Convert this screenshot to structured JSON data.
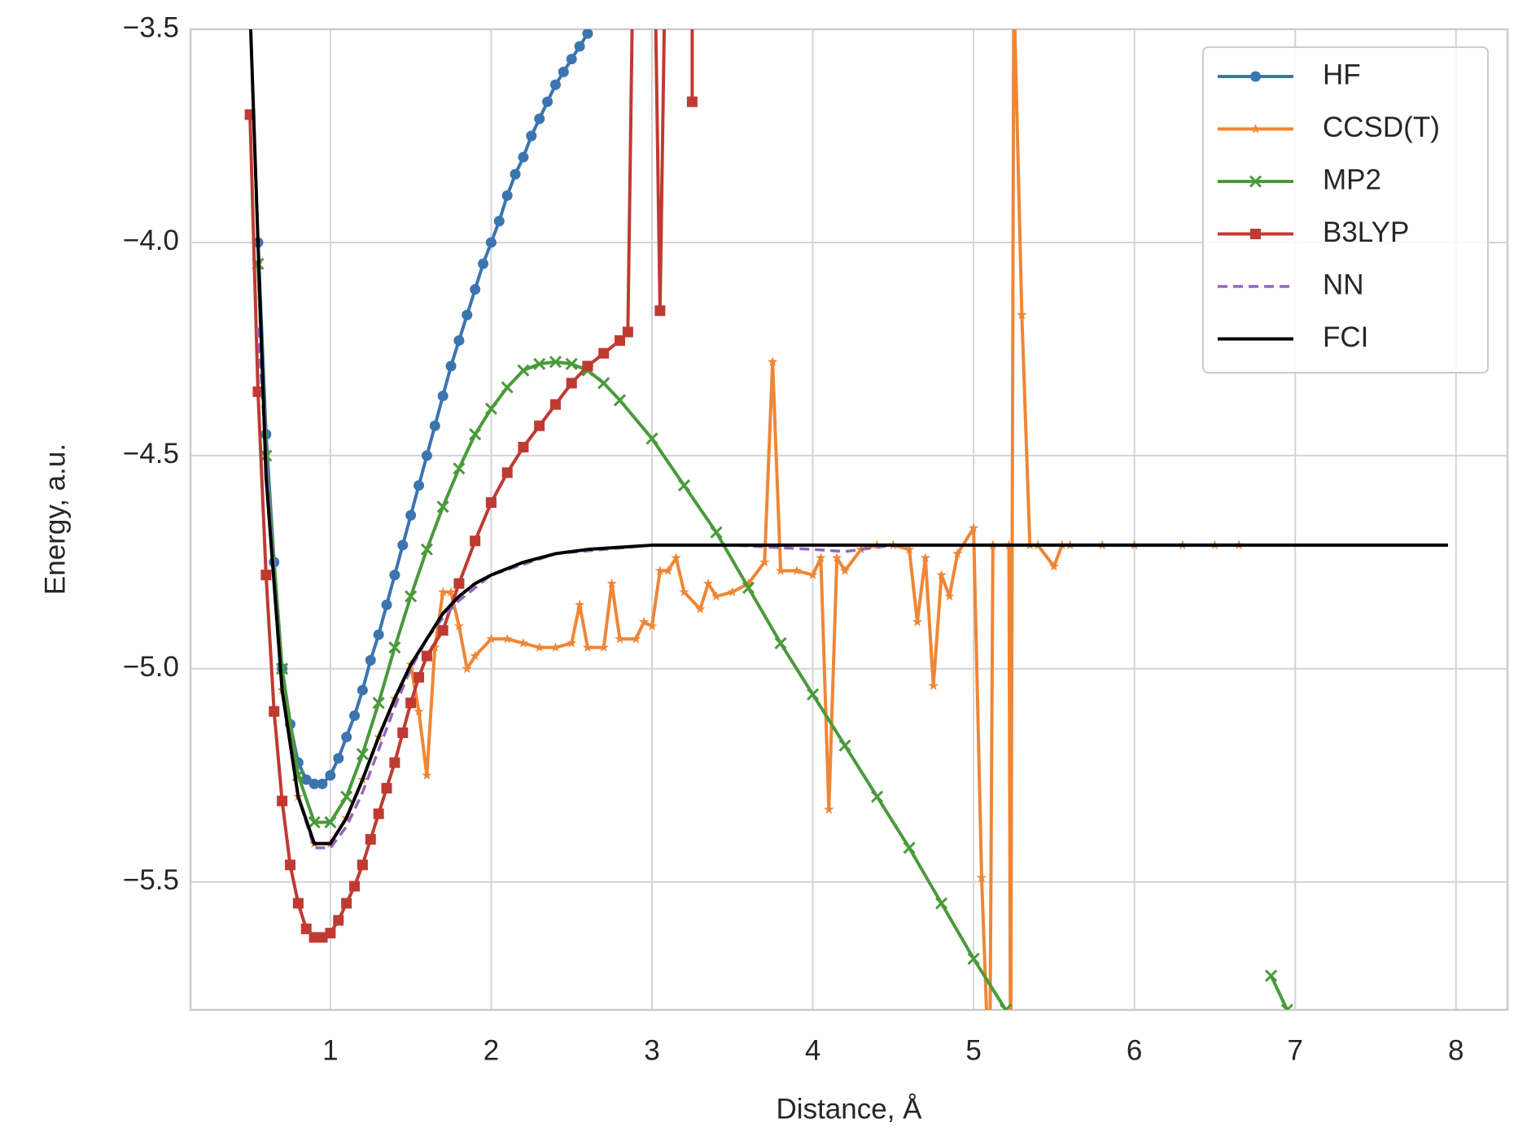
{
  "chart_data": {
    "type": "line",
    "xlabel": "Distance, Å",
    "ylabel": "Energy, a.u.",
    "xlim": [
      0.13,
      8.32
    ],
    "ylim": [
      -5.8,
      -3.5
    ],
    "xticks": [
      1,
      2,
      3,
      4,
      5,
      6,
      7,
      8
    ],
    "yticks": [
      {
        "value": -5.5,
        "label": "−5.5"
      },
      {
        "value": -5.0,
        "label": "−5.0"
      },
      {
        "value": -4.5,
        "label": "−4.5"
      },
      {
        "value": -4.0,
        "label": "−4.0"
      },
      {
        "value": -3.5,
        "label": "−3.5"
      }
    ],
    "grid": true,
    "legend": "upper right",
    "series": [
      {
        "name": "HF",
        "color": "#3a75b0",
        "marker": "circle",
        "x": [
          0.55,
          0.6,
          0.65,
          0.7,
          0.75,
          0.8,
          0.85,
          0.9,
          0.95,
          1.0,
          1.05,
          1.1,
          1.15,
          1.2,
          1.25,
          1.3,
          1.35,
          1.4,
          1.45,
          1.5,
          1.55,
          1.6,
          1.65,
          1.7,
          1.75,
          1.8,
          1.85,
          1.9,
          1.95,
          2.0,
          2.05,
          2.1,
          2.15,
          2.2,
          2.25,
          2.3,
          2.35,
          2.4,
          2.45,
          2.5,
          2.55,
          2.6
        ],
        "values": [
          -4.0,
          -4.45,
          -4.75,
          -5.0,
          -5.13,
          -5.22,
          -5.26,
          -5.27,
          -5.27,
          -5.25,
          -5.21,
          -5.16,
          -5.11,
          -5.05,
          -4.98,
          -4.92,
          -4.85,
          -4.78,
          -4.71,
          -4.64,
          -4.57,
          -4.5,
          -4.43,
          -4.36,
          -4.29,
          -4.23,
          -4.17,
          -4.11,
          -4.05,
          -4.0,
          -3.95,
          -3.89,
          -3.84,
          -3.8,
          -3.75,
          -3.71,
          -3.67,
          -3.63,
          -3.6,
          -3.57,
          -3.54,
          -3.51
        ]
      },
      {
        "name": "CCSD(T)",
        "color": "#ef8636",
        "marker": "star",
        "x": [
          0.55,
          0.6,
          0.7,
          0.8,
          0.9,
          1.0,
          1.1,
          1.2,
          1.3,
          1.4,
          1.5,
          1.55,
          1.6,
          1.65,
          1.7,
          1.75,
          1.8,
          1.85,
          1.9,
          2.0,
          2.1,
          2.2,
          2.3,
          2.4,
          2.5,
          2.55,
          2.6,
          2.7,
          2.75,
          2.8,
          2.9,
          2.95,
          3.0,
          3.05,
          3.1,
          3.15,
          3.2,
          3.3,
          3.35,
          3.4,
          3.5,
          3.6,
          3.7,
          3.75,
          3.8,
          3.9,
          4.0,
          4.05,
          4.1,
          4.15,
          4.2,
          4.3,
          4.4,
          4.5,
          4.6,
          4.65,
          4.7,
          4.75,
          4.8,
          4.85,
          4.9,
          5.0,
          5.05,
          5.1,
          5.12,
          5.22,
          5.23,
          5.25,
          5.3,
          5.35,
          5.4,
          5.5,
          5.55,
          5.6,
          5.8,
          6.0,
          6.3,
          6.5,
          6.65
        ],
        "values": [
          -4.05,
          -4.5,
          -5.05,
          -5.3,
          -5.41,
          -5.41,
          -5.35,
          -5.26,
          -5.16,
          -5.07,
          -4.99,
          -5.1,
          -5.25,
          -4.95,
          -4.82,
          -4.82,
          -4.9,
          -5.0,
          -4.97,
          -4.93,
          -4.93,
          -4.94,
          -4.95,
          -4.95,
          -4.94,
          -4.85,
          -4.95,
          -4.95,
          -4.8,
          -4.93,
          -4.93,
          -4.89,
          -4.9,
          -4.77,
          -4.77,
          -4.74,
          -4.82,
          -4.86,
          -4.8,
          -4.83,
          -4.82,
          -4.8,
          -4.75,
          -4.28,
          -4.77,
          -4.77,
          -4.78,
          -4.74,
          -5.33,
          -4.74,
          -4.77,
          -4.72,
          -4.71,
          -4.71,
          -4.72,
          -4.89,
          -4.74,
          -5.04,
          -4.78,
          -4.83,
          -4.73,
          -4.67,
          -5.49,
          -6.0,
          -4.71,
          -4.71,
          -6.0,
          -3.4,
          -4.17,
          -4.71,
          -4.71,
          -4.76,
          -4.71,
          -4.71,
          -4.71,
          -4.71,
          -4.71,
          -4.71,
          -4.71
        ]
      },
      {
        "name": "MP2",
        "color": "#4a9a3a",
        "marker": "x",
        "x": [
          0.55,
          0.6,
          0.7,
          0.8,
          0.9,
          1.0,
          1.1,
          1.2,
          1.3,
          1.4,
          1.5,
          1.6,
          1.7,
          1.8,
          1.9,
          2.0,
          2.1,
          2.2,
          2.3,
          2.4,
          2.5,
          2.6,
          2.7,
          2.8,
          3.0,
          3.2,
          3.4,
          3.6,
          3.8,
          4.0,
          4.2,
          4.4,
          4.6,
          4.8,
          5.0,
          5.2,
          null,
          6.85,
          6.95
        ],
        "values": [
          -4.05,
          -4.5,
          -5.0,
          -5.25,
          -5.36,
          -5.36,
          -5.3,
          -5.2,
          -5.08,
          -4.95,
          -4.83,
          -4.72,
          -4.62,
          -4.53,
          -4.45,
          -4.39,
          -4.34,
          -4.3,
          -4.285,
          -4.28,
          -4.285,
          -4.3,
          -4.33,
          -4.37,
          -4.46,
          -4.57,
          -4.68,
          -4.81,
          -4.94,
          -5.06,
          -5.18,
          -5.3,
          -5.42,
          -5.55,
          -5.68,
          -5.8,
          null,
          -5.72,
          -5.8
        ]
      },
      {
        "name": "B3LYP",
        "color": "#c03a32",
        "marker": "square",
        "x": [
          0.5,
          0.55,
          0.6,
          0.65,
          0.7,
          0.75,
          0.8,
          0.85,
          0.9,
          0.95,
          1.0,
          1.05,
          1.1,
          1.15,
          1.2,
          1.25,
          1.3,
          1.35,
          1.4,
          1.45,
          1.5,
          1.55,
          1.6,
          1.7,
          1.8,
          1.9,
          2.0,
          2.1,
          2.2,
          2.3,
          2.4,
          2.5,
          2.6,
          2.7,
          2.8,
          2.85,
          2.88,
          null,
          3.02,
          3.05,
          3.08,
          null,
          3.25,
          3.25
        ],
        "values": [
          -3.7,
          -4.35,
          -4.78,
          -5.1,
          -5.31,
          -5.46,
          -5.55,
          -5.61,
          -5.63,
          -5.63,
          -5.62,
          -5.59,
          -5.55,
          -5.51,
          -5.46,
          -5.4,
          -5.34,
          -5.28,
          -5.22,
          -5.15,
          -5.08,
          -5.02,
          -4.97,
          -4.91,
          -4.8,
          -4.7,
          -4.61,
          -4.54,
          -4.48,
          -4.43,
          -4.38,
          -4.33,
          -4.29,
          -4.26,
          -4.23,
          -4.21,
          -3.4,
          null,
          -3.4,
          -4.16,
          -3.4,
          null,
          -3.45,
          -3.67
        ]
      },
      {
        "name": "NN",
        "color": "#9467bd",
        "dashed": true,
        "x": [
          0.55,
          0.6,
          0.7,
          0.8,
          0.9,
          1.0,
          1.1,
          1.2,
          1.3,
          1.4,
          1.5,
          1.6,
          1.7,
          1.8,
          2.0,
          2.4,
          3.0,
          3.5,
          4.0,
          4.2,
          4.5,
          5.0,
          6,
          7,
          7.95
        ],
        "values": [
          -4.2,
          -4.5,
          -5.05,
          -5.3,
          -5.42,
          -5.42,
          -5.37,
          -5.29,
          -5.19,
          -5.09,
          -5.0,
          -4.93,
          -4.88,
          -4.84,
          -4.78,
          -4.73,
          -4.71,
          -4.71,
          -4.72,
          -4.725,
          -4.71,
          -4.71,
          -4.71,
          -4.71,
          -4.71
        ]
      },
      {
        "name": "FCI",
        "color": "#000000",
        "x": [
          0.5,
          0.6,
          0.7,
          0.8,
          0.9,
          1.0,
          1.1,
          1.2,
          1.3,
          1.4,
          1.5,
          1.6,
          1.7,
          1.8,
          1.9,
          2.0,
          2.2,
          2.4,
          2.6,
          2.8,
          3.0,
          4,
          5,
          6,
          7,
          7.95
        ],
        "values": [
          -3.45,
          -4.55,
          -5.05,
          -5.3,
          -5.41,
          -5.41,
          -5.35,
          -5.26,
          -5.16,
          -5.07,
          -4.99,
          -4.93,
          -4.87,
          -4.83,
          -4.8,
          -4.78,
          -4.75,
          -4.73,
          -4.72,
          -4.715,
          -4.71,
          -4.71,
          -4.71,
          -4.71,
          -4.71,
          -4.71
        ]
      }
    ]
  }
}
